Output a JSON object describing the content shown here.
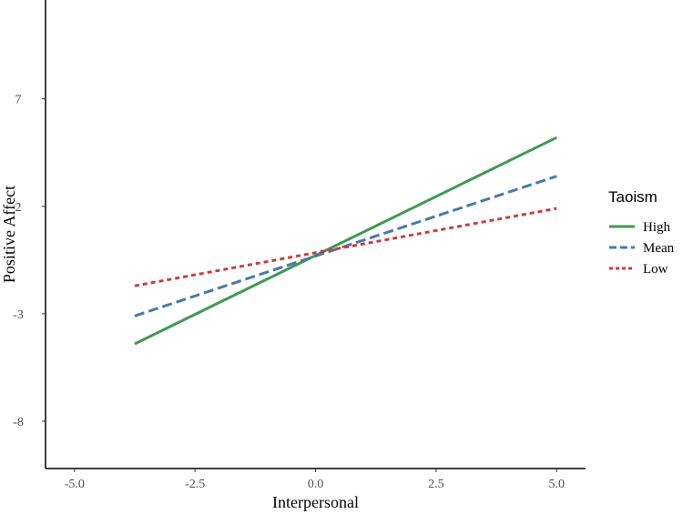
{
  "chart_data": {
    "type": "line",
    "title": "",
    "xlabel": "Interpersonal",
    "ylabel": "Positive Affect",
    "xlim": [
      -5.6,
      5.6
    ],
    "ylim": [
      -10.2,
      11.6
    ],
    "x_ticks": [
      -5.0,
      -2.5,
      0.0,
      2.5,
      5.0
    ],
    "x_tick_labels": [
      "-5.0",
      "-2.5",
      "0.0",
      "2.5",
      "5.0"
    ],
    "y_ticks": [
      -8,
      -3,
      2,
      7
    ],
    "y_tick_labels": [
      "-8",
      "-3",
      "2",
      "7"
    ],
    "grid": false,
    "legend": {
      "title": "Taoism",
      "position": "right"
    },
    "series": [
      {
        "name": "High",
        "x": [
          -3.75,
          5.0
        ],
        "y": [
          -4.4,
          5.2
        ],
        "color": "#3f9a50",
        "dash": "solid"
      },
      {
        "name": "Mean",
        "x": [
          -3.75,
          5.0
        ],
        "y": [
          -3.1,
          3.4
        ],
        "color": "#4a78ad",
        "dash": "long"
      },
      {
        "name": "Low",
        "x": [
          -3.75,
          5.0
        ],
        "y": [
          -1.7,
          1.9
        ],
        "color": "#cc3b3b",
        "dash": "short"
      }
    ]
  }
}
